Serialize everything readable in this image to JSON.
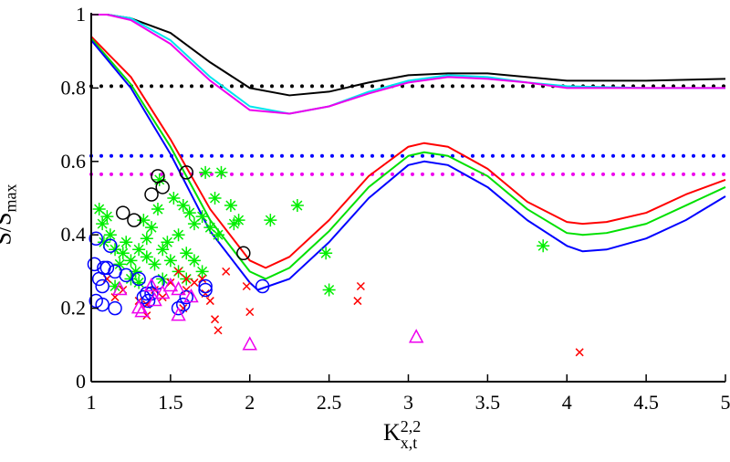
{
  "chart_data": {
    "type": "line",
    "title": "",
    "xlabel": {
      "base": "K",
      "sub": "x,t",
      "sup": "2,2"
    },
    "ylabel": {
      "base": "S/S",
      "sub": "max"
    },
    "xlim": [
      1,
      5
    ],
    "ylim": [
      0,
      1
    ],
    "xticks": [
      "1",
      "1.5",
      "2",
      "2.5",
      "3",
      "3.5",
      "4",
      "4.5",
      "5"
    ],
    "yticks": [
      "0",
      "0.2",
      "0.4",
      "0.6",
      "0.8",
      "1"
    ],
    "grid": false,
    "lines": [
      {
        "name": "black",
        "color": "#000000",
        "x": [
          1,
          1.1,
          1.25,
          1.5,
          1.75,
          2,
          2.25,
          2.5,
          2.75,
          3,
          3.25,
          3.5,
          3.75,
          4,
          4.5,
          5
        ],
        "y": [
          1,
          1,
          0.99,
          0.95,
          0.87,
          0.8,
          0.78,
          0.79,
          0.815,
          0.835,
          0.84,
          0.84,
          0.83,
          0.82,
          0.82,
          0.825
        ]
      },
      {
        "name": "cyan",
        "color": "#00e5ee",
        "x": [
          1,
          1.1,
          1.25,
          1.5,
          1.75,
          2,
          2.25,
          2.5,
          2.75,
          3,
          3.25,
          3.5,
          3.75,
          4,
          4.5,
          5
        ],
        "y": [
          1,
          1,
          0.99,
          0.93,
          0.83,
          0.75,
          0.73,
          0.75,
          0.79,
          0.82,
          0.835,
          0.83,
          0.815,
          0.805,
          0.8,
          0.8
        ]
      },
      {
        "name": "magenta",
        "color": "#ee00ee",
        "x": [
          1,
          1.1,
          1.25,
          1.5,
          1.75,
          2,
          2.25,
          2.5,
          2.75,
          3,
          3.25,
          3.5,
          3.75,
          4,
          4.5,
          5
        ],
        "y": [
          1,
          1,
          0.985,
          0.92,
          0.82,
          0.74,
          0.73,
          0.75,
          0.785,
          0.815,
          0.83,
          0.825,
          0.815,
          0.8,
          0.8,
          0.8
        ]
      },
      {
        "name": "red",
        "color": "#ff0000",
        "x": [
          1,
          1.25,
          1.5,
          1.75,
          2,
          2.1,
          2.25,
          2.5,
          2.75,
          3,
          3.1,
          3.25,
          3.5,
          3.75,
          4,
          4.1,
          4.25,
          4.5,
          4.75,
          5
        ],
        "y": [
          0.94,
          0.83,
          0.66,
          0.47,
          0.33,
          0.31,
          0.34,
          0.44,
          0.56,
          0.64,
          0.65,
          0.64,
          0.58,
          0.49,
          0.435,
          0.43,
          0.435,
          0.46,
          0.51,
          0.55
        ]
      },
      {
        "name": "green",
        "color": "#00e000",
        "x": [
          1,
          1.25,
          1.5,
          1.75,
          2,
          2.1,
          2.25,
          2.5,
          2.75,
          3,
          3.1,
          3.25,
          3.5,
          3.75,
          4,
          4.1,
          4.25,
          4.5,
          4.75,
          5
        ],
        "y": [
          0.935,
          0.81,
          0.64,
          0.44,
          0.3,
          0.28,
          0.31,
          0.41,
          0.53,
          0.615,
          0.625,
          0.615,
          0.56,
          0.47,
          0.405,
          0.4,
          0.405,
          0.43,
          0.48,
          0.53
        ]
      },
      {
        "name": "blue",
        "color": "#0000ff",
        "x": [
          1,
          1.25,
          1.5,
          1.75,
          2,
          2.05,
          2.25,
          2.5,
          2.75,
          3,
          3.1,
          3.25,
          3.5,
          3.75,
          4,
          4.1,
          4.25,
          4.5,
          4.75,
          5
        ],
        "y": [
          0.93,
          0.8,
          0.62,
          0.41,
          0.27,
          0.25,
          0.28,
          0.38,
          0.5,
          0.59,
          0.6,
          0.59,
          0.53,
          0.44,
          0.37,
          0.355,
          0.36,
          0.39,
          0.44,
          0.505
        ]
      }
    ],
    "hlines": [
      {
        "name": "black-dotted",
        "color": "#000000",
        "y": 0.805
      },
      {
        "name": "blue-dotted",
        "color": "#0000ff",
        "y": 0.615
      },
      {
        "name": "magenta-dotted",
        "color": "#ee00ee",
        "y": 0.565
      }
    ],
    "scatter": [
      {
        "name": "green-stars",
        "marker": "star",
        "color": "#00ee00",
        "points": [
          [
            1.05,
            0.47
          ],
          [
            1.07,
            0.43
          ],
          [
            1.1,
            0.45
          ],
          [
            1.12,
            0.4
          ],
          [
            1.08,
            0.38
          ],
          [
            1.15,
            0.36
          ],
          [
            1.2,
            0.35
          ],
          [
            1.25,
            0.33
          ],
          [
            1.3,
            0.36
          ],
          [
            1.35,
            0.34
          ],
          [
            1.4,
            0.32
          ],
          [
            1.45,
            0.36
          ],
          [
            1.38,
            0.42
          ],
          [
            1.33,
            0.44
          ],
          [
            1.5,
            0.33
          ],
          [
            1.55,
            0.3
          ],
          [
            1.48,
            0.38
          ],
          [
            1.28,
            0.3
          ],
          [
            1.18,
            0.32
          ],
          [
            1.22,
            0.38
          ],
          [
            1.42,
            0.47
          ],
          [
            1.43,
            0.55
          ],
          [
            1.52,
            0.5
          ],
          [
            1.58,
            0.48
          ],
          [
            1.62,
            0.46
          ],
          [
            1.65,
            0.43
          ],
          [
            1.7,
            0.45
          ],
          [
            1.75,
            0.42
          ],
          [
            1.82,
            0.57
          ],
          [
            1.72,
            0.57
          ],
          [
            1.78,
            0.5
          ],
          [
            1.8,
            0.4
          ],
          [
            1.88,
            0.48
          ],
          [
            1.9,
            0.43
          ],
          [
            1.93,
            0.44
          ],
          [
            2.13,
            0.44
          ],
          [
            2.3,
            0.48
          ],
          [
            2.48,
            0.35
          ],
          [
            2.5,
            0.25
          ],
          [
            3.85,
            0.37
          ],
          [
            1.6,
            0.35
          ],
          [
            1.65,
            0.33
          ],
          [
            1.55,
            0.4
          ],
          [
            1.35,
            0.39
          ],
          [
            1.25,
            0.28
          ],
          [
            1.15,
            0.26
          ],
          [
            1.45,
            0.28
          ],
          [
            1.6,
            0.28
          ],
          [
            1.7,
            0.3
          ],
          [
            1.3,
            0.27
          ]
        ]
      },
      {
        "name": "red-crosses",
        "marker": "x",
        "color": "#ff0000",
        "points": [
          [
            1.1,
            0.28
          ],
          [
            1.15,
            0.23
          ],
          [
            1.2,
            0.25
          ],
          [
            1.3,
            0.22
          ],
          [
            1.35,
            0.21
          ],
          [
            1.4,
            0.25
          ],
          [
            1.45,
            0.23
          ],
          [
            1.5,
            0.27
          ],
          [
            1.55,
            0.3
          ],
          [
            1.6,
            0.28
          ],
          [
            1.65,
            0.27
          ],
          [
            1.7,
            0.28
          ],
          [
            1.75,
            0.22
          ],
          [
            1.78,
            0.17
          ],
          [
            1.8,
            0.14
          ],
          [
            1.85,
            0.3
          ],
          [
            1.98,
            0.26
          ],
          [
            2.0,
            0.19
          ],
          [
            1.6,
            0.25
          ],
          [
            1.58,
            0.2
          ],
          [
            2.68,
            0.22
          ],
          [
            2.7,
            0.26
          ],
          [
            4.08,
            0.08
          ],
          [
            1.72,
            0.24
          ],
          [
            1.35,
            0.18
          ]
        ]
      },
      {
        "name": "blue-circles",
        "marker": "circle",
        "color": "#0000ff",
        "points": [
          [
            1.03,
            0.39
          ],
          [
            1.08,
            0.31
          ],
          [
            1.12,
            0.37
          ],
          [
            1.02,
            0.32
          ],
          [
            1.05,
            0.28
          ],
          [
            1.1,
            0.31
          ],
          [
            1.15,
            0.3
          ],
          [
            1.07,
            0.26
          ],
          [
            1.03,
            0.22
          ],
          [
            1.07,
            0.21
          ],
          [
            1.15,
            0.2
          ],
          [
            1.22,
            0.29
          ],
          [
            1.3,
            0.28
          ],
          [
            1.35,
            0.24
          ],
          [
            1.38,
            0.24
          ],
          [
            1.42,
            0.27
          ],
          [
            1.36,
            0.22
          ],
          [
            1.55,
            0.2
          ],
          [
            1.58,
            0.21
          ],
          [
            1.6,
            0.23
          ],
          [
            1.72,
            0.26
          ],
          [
            1.72,
            0.25
          ],
          [
            2.08,
            0.26
          ],
          [
            1.33,
            0.23
          ]
        ]
      },
      {
        "name": "magenta-triangles",
        "marker": "triangle",
        "color": "#ee00ee",
        "points": [
          [
            1.18,
            0.25
          ],
          [
            1.3,
            0.2
          ],
          [
            1.32,
            0.19
          ],
          [
            1.4,
            0.22
          ],
          [
            1.45,
            0.24
          ],
          [
            1.5,
            0.26
          ],
          [
            1.55,
            0.25
          ],
          [
            1.55,
            0.18
          ],
          [
            1.63,
            0.23
          ],
          [
            1.38,
            0.26
          ],
          [
            2.0,
            0.1
          ],
          [
            3.05,
            0.12
          ]
        ]
      },
      {
        "name": "black-circles",
        "marker": "circle",
        "color": "#000000",
        "points": [
          [
            1.2,
            0.46
          ],
          [
            1.27,
            0.44
          ],
          [
            1.38,
            0.51
          ],
          [
            1.42,
            0.56
          ],
          [
            1.45,
            0.53
          ],
          [
            1.6,
            0.57
          ],
          [
            1.96,
            0.35
          ]
        ]
      }
    ]
  }
}
